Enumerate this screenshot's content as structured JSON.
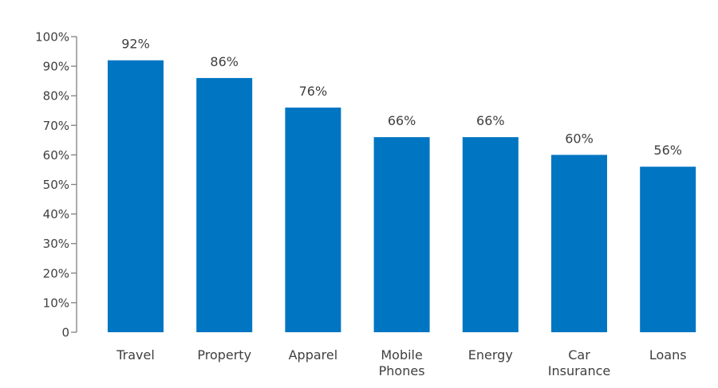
{
  "chart_data": {
    "type": "bar",
    "categories": [
      "Travel",
      "Property",
      "Apparel",
      "Mobile Phones",
      "Energy",
      "Car Insurance",
      "Loans"
    ],
    "category_lines": [
      [
        "Travel"
      ],
      [
        "Property"
      ],
      [
        "Apparel"
      ],
      [
        "Mobile",
        "Phones"
      ],
      [
        "Energy"
      ],
      [
        "Car",
        "Insurance"
      ],
      [
        "Loans"
      ]
    ],
    "values": [
      92,
      86,
      76,
      66,
      66,
      60,
      56
    ],
    "value_labels": [
      "92%",
      "86%",
      "76%",
      "66%",
      "66%",
      "60%",
      "56%"
    ],
    "ylim": [
      0,
      100
    ],
    "yticks": [
      0,
      10,
      20,
      30,
      40,
      50,
      60,
      70,
      80,
      90,
      100
    ],
    "ytick_labels": [
      "0",
      "10%",
      "20%",
      "30%",
      "40%",
      "50%",
      "60%",
      "70%",
      "80%",
      "90%",
      "100%"
    ],
    "title": "",
    "xlabel": "",
    "ylabel": "",
    "grid": false,
    "legend": "none",
    "colors": {
      "bar": "#0075c2",
      "axis": "#7f7f7f",
      "text": "#404040"
    }
  }
}
